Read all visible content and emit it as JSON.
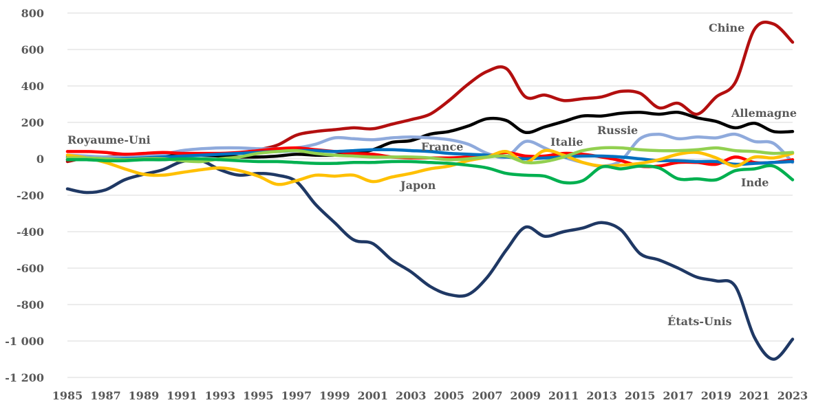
{
  "chart_data": {
    "type": "line",
    "title": "",
    "xlabel": "",
    "ylabel": "",
    "ylim": [
      -1200,
      800
    ],
    "xlim": [
      1985,
      2023
    ],
    "grid": true,
    "x": [
      1985,
      1986,
      1987,
      1988,
      1989,
      1990,
      1991,
      1992,
      1993,
      1994,
      1995,
      1996,
      1997,
      1998,
      1999,
      2000,
      2001,
      2002,
      2003,
      2004,
      2005,
      2006,
      2007,
      2008,
      2009,
      2010,
      2011,
      2012,
      2013,
      2014,
      2015,
      2016,
      2017,
      2018,
      2019,
      2020,
      2021,
      2022,
      2023
    ],
    "yticks": [
      {
        "value": 800,
        "label": "800"
      },
      {
        "value": 600,
        "label": "600"
      },
      {
        "value": 400,
        "label": "400"
      },
      {
        "value": 200,
        "label": "200"
      },
      {
        "value": 0,
        "label": "0"
      },
      {
        "value": -200,
        "label": "-200"
      },
      {
        "value": -400,
        "label": "-400"
      },
      {
        "value": -600,
        "label": "-600"
      },
      {
        "value": -800,
        "label": "-800"
      },
      {
        "value": -1000,
        "label": "-1 000"
      },
      {
        "value": -1200,
        "label": "-1 200"
      }
    ],
    "xticks": [
      "1985",
      "1987",
      "1989",
      "1991",
      "1993",
      "1995",
      "1997",
      "1999",
      "2001",
      "2003",
      "2005",
      "2007",
      "2009",
      "2011",
      "2013",
      "2015",
      "2017",
      "2019",
      "2021",
      "2023"
    ],
    "series": [
      {
        "name": "États-Unis",
        "color": "#1f3864",
        "values": [
          -165,
          -185,
          -170,
          -115,
          -85,
          -60,
          -15,
          -10,
          -60,
          -90,
          -80,
          -90,
          -125,
          -250,
          -350,
          -445,
          -465,
          -555,
          -620,
          -700,
          -745,
          -745,
          -650,
          -500,
          -375,
          -425,
          -400,
          -380,
          -350,
          -390,
          -520,
          -555,
          -600,
          -650,
          -670,
          -700,
          -980,
          -1100,
          -990
        ]
      },
      {
        "name": "Chine",
        "color": "#b30f0f",
        "values": [
          -15,
          5,
          10,
          20,
          25,
          30,
          30,
          25,
          20,
          30,
          50,
          75,
          130,
          150,
          160,
          170,
          165,
          190,
          215,
          245,
          320,
          410,
          480,
          495,
          340,
          350,
          320,
          330,
          340,
          370,
          360,
          280,
          305,
          245,
          340,
          420,
          710,
          740,
          640
        ]
      },
      {
        "name": "Allemagne",
        "color": "#000000",
        "values": [
          -5,
          5,
          5,
          10,
          15,
          20,
          25,
          20,
          15,
          10,
          10,
          15,
          25,
          20,
          20,
          30,
          50,
          90,
          100,
          135,
          150,
          180,
          220,
          210,
          145,
          175,
          205,
          235,
          235,
          250,
          255,
          245,
          255,
          225,
          205,
          170,
          195,
          150,
          150
        ]
      },
      {
        "name": "Russie",
        "color": "#8faadc",
        "values": [
          20,
          15,
          10,
          10,
          15,
          25,
          45,
          55,
          60,
          60,
          55,
          55,
          60,
          80,
          115,
          110,
          105,
          115,
          120,
          115,
          105,
          80,
          30,
          10,
          95,
          60,
          10,
          -20,
          -40,
          -10,
          110,
          135,
          110,
          120,
          115,
          135,
          95,
          85,
          -20
        ]
      },
      {
        "name": "Royaume-Uni",
        "color": "#ff0000",
        "values": [
          40,
          40,
          35,
          25,
          30,
          35,
          30,
          30,
          30,
          35,
          45,
          55,
          60,
          50,
          40,
          30,
          25,
          10,
          5,
          5,
          5,
          10,
          15,
          35,
          15,
          15,
          30,
          25,
          10,
          -10,
          -40,
          -40,
          -20,
          -20,
          -30,
          10,
          -20,
          -20,
          -5
        ]
      },
      {
        "name": "France",
        "color": "#0070c0",
        "values": [
          10,
          5,
          0,
          0,
          5,
          10,
          15,
          20,
          25,
          30,
          35,
          40,
          45,
          45,
          40,
          45,
          50,
          50,
          45,
          40,
          30,
          25,
          20,
          10,
          0,
          5,
          10,
          15,
          15,
          10,
          0,
          -10,
          -10,
          -15,
          -15,
          -30,
          -25,
          -20,
          -15
        ]
      },
      {
        "name": "Japon",
        "color": "#ffc000",
        "values": [
          20,
          5,
          -20,
          -55,
          -85,
          -90,
          -75,
          -60,
          -50,
          -65,
          -95,
          -140,
          -120,
          -90,
          -95,
          -90,
          -125,
          -100,
          -80,
          -55,
          -40,
          -10,
          10,
          40,
          -20,
          45,
          20,
          -20,
          -40,
          -35,
          -25,
          -5,
          25,
          35,
          5,
          -40,
          10,
          5,
          30
        ]
      },
      {
        "name": "Italie",
        "color": "#92d050",
        "values": [
          5,
          5,
          0,
          -5,
          0,
          0,
          -10,
          -15,
          0,
          10,
          30,
          40,
          45,
          30,
          20,
          15,
          10,
          10,
          10,
          5,
          -5,
          0,
          10,
          15,
          -20,
          -15,
          10,
          45,
          60,
          60,
          50,
          45,
          45,
          50,
          60,
          45,
          40,
          30,
          35
        ]
      },
      {
        "name": "Inde",
        "color": "#00b050",
        "values": [
          -5,
          -5,
          -10,
          -10,
          -5,
          -5,
          0,
          0,
          -5,
          -10,
          -15,
          -15,
          -20,
          -25,
          -25,
          -20,
          -20,
          -15,
          -15,
          -20,
          -25,
          -35,
          -50,
          -80,
          -90,
          -95,
          -130,
          -120,
          -45,
          -55,
          -40,
          -50,
          -110,
          -110,
          -115,
          -65,
          -55,
          -40,
          -115
        ]
      }
    ],
    "annotations": [
      {
        "text": "Chine",
        "series": "Chine"
      },
      {
        "text": "Allemagne",
        "series": "Allemagne"
      },
      {
        "text": "Russie",
        "series": "Russie"
      },
      {
        "text": "Royaume-Uni",
        "series": "Royaume-Uni"
      },
      {
        "text": "France",
        "series": "France"
      },
      {
        "text": "Italie",
        "series": "Italie"
      },
      {
        "text": "Japon",
        "series": "Japon"
      },
      {
        "text": "Inde",
        "series": "Inde"
      },
      {
        "text": "États-Unis",
        "series": "États-Unis"
      }
    ]
  }
}
